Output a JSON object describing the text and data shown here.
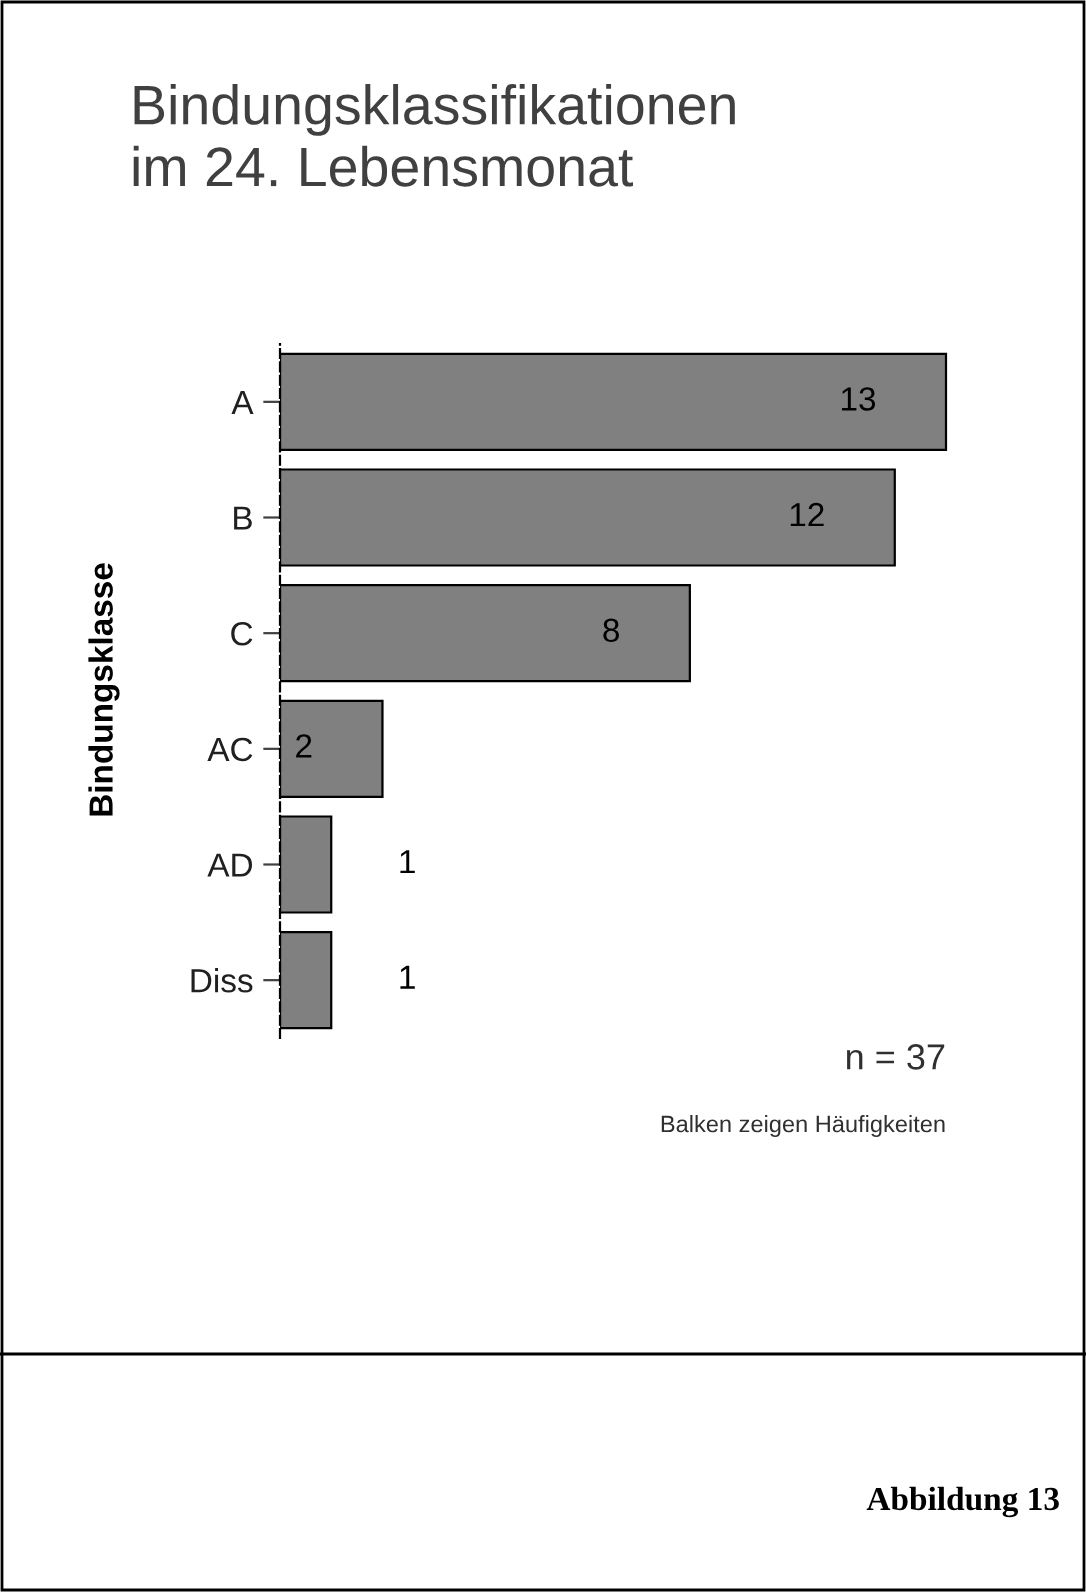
{
  "chart_data": {
    "type": "bar",
    "orientation": "horizontal",
    "title": "Bindungsklassifikationen\nim 24. Lebensmonat",
    "ylabel": "Bindungsklasse",
    "categories": [
      "A",
      "B",
      "C",
      "AC",
      "AD",
      "Diss"
    ],
    "values": [
      13,
      12,
      8,
      2,
      1,
      1
    ],
    "color": "#808080",
    "data_labels": true,
    "tick_labels": "y",
    "annotations": [
      "n = 37",
      "Balken zeigen Häufigkeiten",
      "Abbildung 13"
    ]
  }
}
